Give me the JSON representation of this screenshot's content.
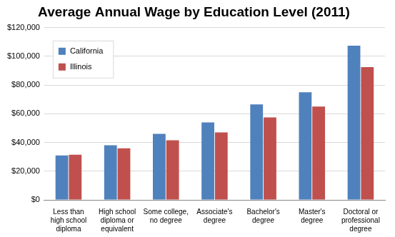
{
  "chart_data": {
    "type": "bar",
    "title": "Average Annual Wage by Education Level (2011)",
    "categories": [
      "Less than high school diploma",
      "High school diploma or equivalent",
      "Some college, no degree",
      "Associate's degree",
      "Bachelor's degree",
      "Master's degree",
      "Doctoral or professional degree"
    ],
    "series": [
      {
        "name": "California",
        "color": "#4f81bd",
        "values": [
          31000,
          38000,
          46000,
          54000,
          66500,
          75000,
          107500
        ]
      },
      {
        "name": "Illinois",
        "color": "#c0504d",
        "values": [
          31500,
          36000,
          41500,
          47000,
          57500,
          65000,
          92500
        ]
      }
    ],
    "ylim": [
      0,
      120000
    ],
    "yticks": [
      {
        "value": 0,
        "label": "$0"
      },
      {
        "value": 20000,
        "label": "$20,000"
      },
      {
        "value": 40000,
        "label": "$40,000"
      },
      {
        "value": 60000,
        "label": "$60,000"
      },
      {
        "value": 80000,
        "label": "$80,000"
      },
      {
        "value": 100000,
        "label": "$100,000"
      },
      {
        "value": 120000,
        "label": "$120,000"
      }
    ],
    "grid": true,
    "legend": "upper-left"
  }
}
